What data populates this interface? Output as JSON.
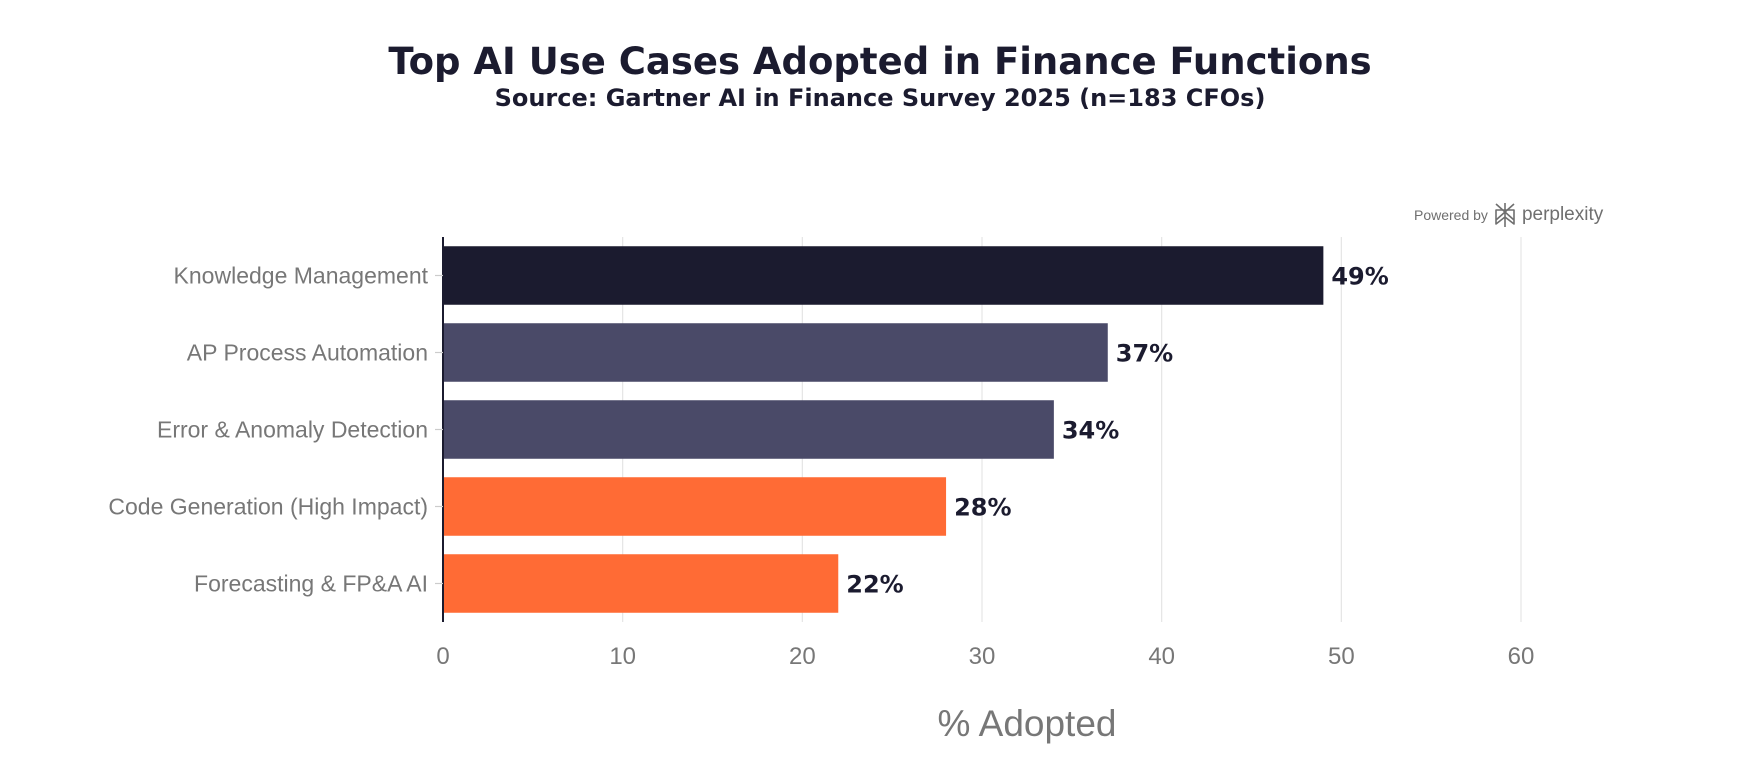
{
  "chart_data": {
    "type": "bar",
    "orientation": "horizontal",
    "title": "Top AI Use Cases Adopted in Finance Functions",
    "subtitle": "Source: Gartner AI in Finance Survey 2025 (n=183 CFOs)",
    "xlabel": "% Adopted",
    "ylabel": "",
    "xlim": [
      0,
      60
    ],
    "xticks": [
      0,
      10,
      20,
      30,
      40,
      50,
      60
    ],
    "grid": true,
    "categories": [
      "Knowledge Management",
      "AP Process Automation",
      "Error & Anomaly Detection",
      "Code Generation (High Impact)",
      "Forecasting & FP&A AI"
    ],
    "values": [
      49,
      37,
      34,
      28,
      22
    ],
    "value_labels": [
      "49%",
      "37%",
      "34%",
      "28%",
      "22%"
    ],
    "bar_colors": [
      "#1b1b2f",
      "#4a4a68",
      "#4a4a68",
      "#ff6b35",
      "#ff6b35"
    ]
  },
  "watermark": {
    "powered_by": "Powered by",
    "brand": "perplexity",
    "icon": "perplexity-logo-icon"
  }
}
